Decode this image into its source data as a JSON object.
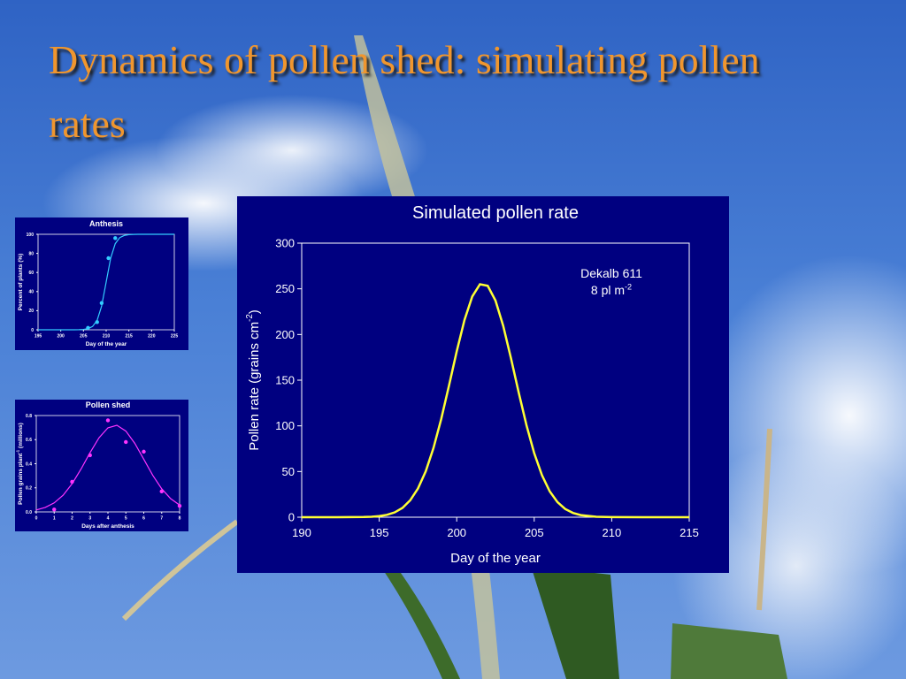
{
  "title": "Dynamics of pollen shed: simulating pollen rates",
  "chart_data": [
    {
      "type": "line",
      "title": "Simulated pollen rate",
      "xlabel": "Day of the year",
      "ylabel": [
        "Pollen rate (grains cm",
        "-2",
        ")"
      ],
      "annotation": [
        [
          "Dekalb 611"
        ],
        [
          "8 pl m",
          "-2"
        ]
      ],
      "xlim": [
        190,
        215
      ],
      "xticks": [
        190,
        195,
        200,
        205,
        210,
        215
      ],
      "ylim": [
        0,
        300
      ],
      "yticks": [
        0,
        50,
        100,
        150,
        200,
        250,
        300
      ],
      "series": [
        {
          "type": "line",
          "color": "#ffff33",
          "x": [
            190,
            192,
            194,
            194.5,
            195,
            195.5,
            196,
            196.5,
            197,
            197.5,
            198,
            198.5,
            199,
            199.5,
            200,
            200.5,
            201,
            201.5,
            202,
            202.5,
            203,
            203.5,
            204,
            204.5,
            205,
            205.5,
            206,
            206.5,
            207,
            207.5,
            208,
            209,
            210,
            212,
            215
          ],
          "values": [
            0,
            0,
            0.2,
            0.5,
            1.2,
            2.6,
            5.3,
            10.2,
            18.5,
            31.4,
            50.2,
            75.7,
            107.5,
            143.9,
            181.5,
            215.8,
            241.5,
            255,
            253.3,
            237.2,
            209.4,
            174,
            136.4,
            100.7,
            70,
            45.9,
            28.3,
            16.5,
            9,
            4.7,
            2.3,
            0.5,
            0.1,
            0,
            0
          ]
        }
      ]
    },
    {
      "type": "line",
      "title": "Anthesis",
      "xlabel": "Day of the year",
      "ylabel": [
        "Percent of plants (%)"
      ],
      "xlim": [
        195,
        225
      ],
      "xticks": [
        195,
        200,
        205,
        210,
        215,
        220,
        225
      ],
      "ylim": [
        0,
        100
      ],
      "yticks": [
        0,
        20,
        40,
        60,
        80,
        100
      ],
      "series": [
        {
          "type": "line",
          "color": "#33ccff",
          "x": [
            195,
            200,
            203,
            204,
            205,
            206,
            207,
            208,
            209,
            210,
            211,
            212,
            213,
            214,
            215,
            216,
            217,
            220,
            225
          ],
          "values": [
            0,
            0,
            0,
            0.1,
            0.4,
            1.2,
            3.4,
            9.8,
            24.8,
            50,
            75.2,
            90.2,
            96.6,
            98.8,
            99.6,
            99.9,
            100,
            100,
            100
          ]
        },
        {
          "type": "scatter",
          "color": "#33ccff",
          "x": [
            206,
            208,
            209,
            210.5,
            212
          ],
          "values": [
            2,
            8,
            28,
            75,
            96
          ]
        }
      ]
    },
    {
      "type": "line",
      "title": "Pollen shed",
      "xlabel": "Days after anthesis",
      "ylabel": [
        "Pollen grains plant",
        "-1",
        " (millions)"
      ],
      "xlim": [
        0,
        8
      ],
      "xticks": [
        0,
        1,
        2,
        3,
        4,
        5,
        6,
        7,
        8
      ],
      "ylim": [
        0,
        0.8
      ],
      "yticks": [
        {
          "value": 0,
          "label": "0.0"
        },
        0.2,
        0.4,
        0.6,
        0.8
      ],
      "series": [
        {
          "type": "line",
          "color": "#ff33ff",
          "x": [
            0,
            0.5,
            1,
            1.5,
            2,
            2.5,
            3,
            3.5,
            4,
            4.5,
            5,
            5.5,
            6,
            6.5,
            7,
            7.5,
            8
          ],
          "values": [
            0.016,
            0.037,
            0.075,
            0.139,
            0.234,
            0.356,
            0.491,
            0.615,
            0.698,
            0.719,
            0.671,
            0.569,
            0.437,
            0.304,
            0.192,
            0.11,
            0.057
          ]
        },
        {
          "type": "scatter",
          "color": "#ff33ff",
          "x": [
            1,
            2,
            3,
            4,
            5,
            6,
            7,
            8
          ],
          "values": [
            0.02,
            0.25,
            0.47,
            0.76,
            0.58,
            0.5,
            0.17,
            0.05
          ]
        }
      ]
    }
  ]
}
